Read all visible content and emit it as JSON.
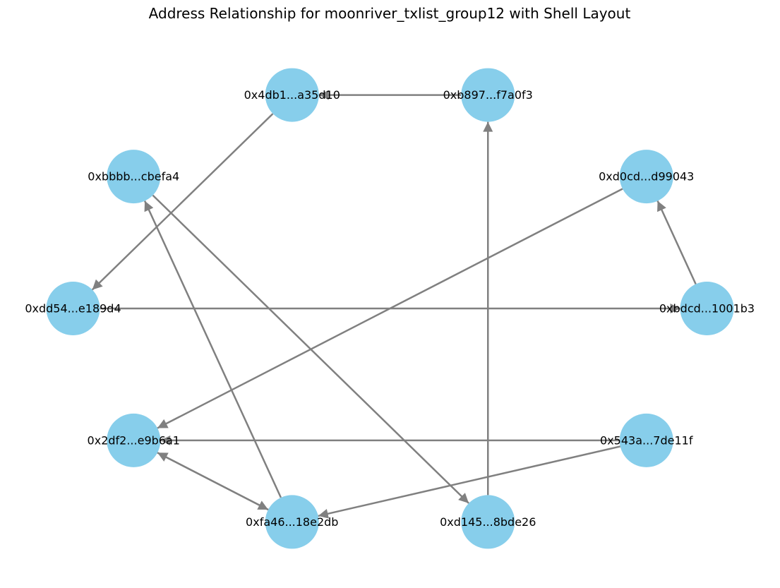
{
  "title": "Address Relationship for moonriver_txlist_group12 with Shell Layout",
  "colors": {
    "node_fill": "#87ceeb",
    "edge": "#808080",
    "label": "#000000",
    "background": "#ffffff"
  },
  "graph": {
    "layout": "shell",
    "directed": true,
    "nodes": [
      {
        "id": "n0",
        "label": "0xb897...f7a0f3"
      },
      {
        "id": "n1",
        "label": "0x4db1...a35d10"
      },
      {
        "id": "n2",
        "label": "0xbbbb...cbefa4"
      },
      {
        "id": "n3",
        "label": "0xdd54...e189d4"
      },
      {
        "id": "n4",
        "label": "0x2df2...e9b6a1"
      },
      {
        "id": "n5",
        "label": "0xfa46...18e2db"
      },
      {
        "id": "n6",
        "label": "0xd145...8bde26"
      },
      {
        "id": "n7",
        "label": "0x543a...7de11f"
      },
      {
        "id": "n8",
        "label": "0xbdcd...1001b3"
      },
      {
        "id": "n9",
        "label": "0xd0cd...d99043"
      }
    ],
    "edges": [
      {
        "source": "n0",
        "target": "n1"
      },
      {
        "source": "n1",
        "target": "n3"
      },
      {
        "source": "n2",
        "target": "n6"
      },
      {
        "source": "n3",
        "target": "n8"
      },
      {
        "source": "n9",
        "target": "n4"
      },
      {
        "source": "n8",
        "target": "n9"
      },
      {
        "source": "n7",
        "target": "n4"
      },
      {
        "source": "n7",
        "target": "n5"
      },
      {
        "source": "n4",
        "target": "n5"
      },
      {
        "source": "n5",
        "target": "n4"
      },
      {
        "source": "n5",
        "target": "n2"
      },
      {
        "source": "n6",
        "target": "n0"
      }
    ]
  }
}
